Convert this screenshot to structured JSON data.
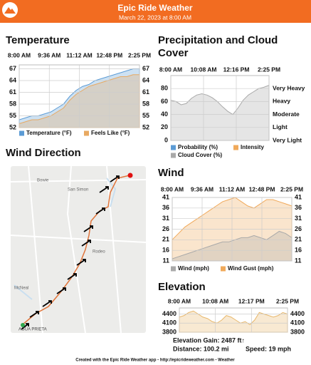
{
  "header": {
    "title": "Epic Ride Weather",
    "subtitle": "March 22, 2023 at 8:00 AM"
  },
  "chart_data": [
    {
      "type": "area",
      "title": "Temperature",
      "xlabels": [
        "8:00 AM",
        "9:36 AM",
        "11:12 AM",
        "12:48 PM",
        "2:25 PM"
      ],
      "ylim": [
        52,
        68
      ],
      "yticks": [
        52,
        55,
        58,
        61,
        64,
        67
      ],
      "grid": true,
      "series": [
        {
          "name": "Temperature (°F)",
          "color": "#5b9bd5",
          "values": [
            54,
            54.5,
            55,
            55,
            55.5,
            56,
            57,
            58,
            60,
            61.5,
            62.5,
            63,
            64,
            64.5,
            65,
            65.5,
            66,
            66.5,
            67,
            67
          ]
        },
        {
          "name": "Feels Like (°F)",
          "color": "#e8a962",
          "values": [
            53,
            53.5,
            54,
            54,
            54.5,
            55,
            56,
            57,
            59,
            60.5,
            61.5,
            62.5,
            63,
            63.5,
            64,
            64.5,
            65,
            65,
            65.5,
            65.5
          ]
        }
      ]
    },
    {
      "type": "area",
      "title": "Precipitation and Cloud Cover",
      "xlabels": [
        "8:00 AM",
        "10:08 AM",
        "12:16 PM",
        "2:25 PM"
      ],
      "ylim": [
        0,
        100
      ],
      "yticks": [
        0,
        20,
        40,
        60,
        80
      ],
      "grid": true,
      "y2ticks": [
        {
          "value": 0,
          "label": "Very Light"
        },
        {
          "value": 20,
          "label": "Light"
        },
        {
          "value": 40,
          "label": "Moderate"
        },
        {
          "value": 60,
          "label": "Heavy"
        },
        {
          "value": 80,
          "label": "Very Heavy"
        }
      ],
      "series": [
        {
          "name": "Probability (%)",
          "color": "#5b9bd5",
          "values": [
            0,
            0,
            0,
            0,
            0,
            0,
            0,
            0,
            0,
            0,
            0,
            0,
            0,
            0,
            0,
            0,
            0,
            0,
            0,
            0
          ]
        },
        {
          "name": "Intensity",
          "color": "#f0a95a",
          "values": [
            0,
            0,
            0,
            0,
            0,
            0,
            0,
            0,
            0,
            0,
            0,
            0,
            0,
            0,
            0,
            0,
            0,
            0,
            0,
            0
          ]
        },
        {
          "name": "Cloud Cover (%)",
          "color": "#a9a9a9",
          "values": [
            62,
            60,
            55,
            57,
            65,
            70,
            72,
            70,
            66,
            60,
            52,
            45,
            40,
            50,
            62,
            70,
            75,
            80,
            82,
            85
          ]
        }
      ]
    },
    {
      "type": "area",
      "title": "Wind",
      "xlabels": [
        "8:00 AM",
        "9:36 AM",
        "11:12 AM",
        "12:48 PM",
        "2:25 PM"
      ],
      "ylim": [
        11,
        41
      ],
      "yticks": [
        11,
        16,
        21,
        26,
        31,
        36,
        41
      ],
      "grid": true,
      "series": [
        {
          "name": "Wind Gust (mph)",
          "color": "#f0a95a",
          "values": [
            21,
            24,
            27,
            29,
            31,
            33,
            35,
            37,
            39,
            40,
            41,
            39,
            37,
            36,
            38,
            40,
            40,
            39,
            38,
            37
          ]
        },
        {
          "name": "Wind (mph)",
          "color": "#a9a9a9",
          "values": [
            12,
            13,
            14,
            15,
            16,
            17,
            18,
            19,
            20,
            20,
            21,
            22,
            22,
            23,
            22,
            21,
            23,
            25,
            24,
            22
          ]
        }
      ]
    },
    {
      "type": "area",
      "title": "Elevation",
      "xlabels": [
        "8:00 AM",
        "10:08 AM",
        "12:17 PM",
        "2:25 PM"
      ],
      "ylim": [
        3800,
        4600
      ],
      "yticks": [
        3800,
        4100,
        4400
      ],
      "grid": true,
      "series": [
        {
          "name": "Elevation",
          "color": "#e8b76a",
          "values": [
            4300,
            4350,
            4450,
            4500,
            4400,
            4300,
            4250,
            4150,
            4100,
            4200,
            4350,
            4300,
            4200,
            4100,
            4150,
            4050,
            4200,
            4450,
            4400,
            4350,
            4300,
            4350,
            4450,
            4400
          ]
        }
      ]
    }
  ],
  "wind_direction": {
    "title": "Wind Direction",
    "labels": [
      "Bowie",
      "San Simon",
      "Rodeo",
      "McNeal",
      "AGUA PRIETA"
    ]
  },
  "stats": {
    "gain": "Elevation Gain: 2487 ft↑",
    "distance": "Distance: 100.2 mi",
    "speed": "Speed: 19 mph"
  },
  "footer": "Created with the Epic Ride Weather app - http://epicrideweather.com - Weather"
}
